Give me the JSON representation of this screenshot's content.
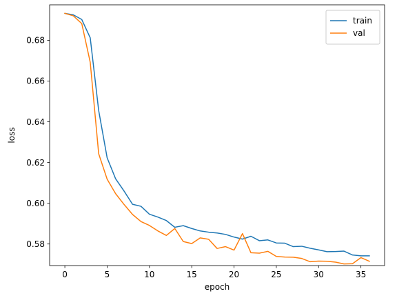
{
  "chart_data": {
    "type": "line",
    "title": "",
    "xlabel": "epoch",
    "ylabel": "loss",
    "xlim": [
      -1.8,
      37.8
    ],
    "ylim": [
      0.5694,
      0.6974
    ],
    "xticks": [
      0,
      5,
      10,
      15,
      20,
      25,
      30,
      35
    ],
    "yticks": [
      0.58,
      0.6,
      0.62,
      0.64,
      0.66,
      0.68
    ],
    "ytick_labels": [
      "0.58",
      "0.60",
      "0.62",
      "0.64",
      "0.66",
      "0.68"
    ],
    "grid": false,
    "legend_position": "upper right",
    "x": [
      0,
      1,
      2,
      3,
      4,
      5,
      6,
      7,
      8,
      9,
      10,
      11,
      12,
      13,
      14,
      15,
      16,
      17,
      18,
      19,
      20,
      21,
      22,
      23,
      24,
      25,
      26,
      27,
      28,
      29,
      30,
      31,
      32,
      33,
      34,
      35,
      36
    ],
    "series": [
      {
        "name": "train",
        "color": "#1f77b4",
        "values": [
          0.6932,
          0.6925,
          0.6902,
          0.6812,
          0.6455,
          0.6223,
          0.612,
          0.606,
          0.5995,
          0.5985,
          0.5946,
          0.5932,
          0.5915,
          0.5882,
          0.589,
          0.5876,
          0.5864,
          0.5858,
          0.5854,
          0.5847,
          0.5834,
          0.5824,
          0.5838,
          0.5816,
          0.582,
          0.5805,
          0.5804,
          0.5787,
          0.5789,
          0.5779,
          0.5771,
          0.5762,
          0.5763,
          0.5765,
          0.5746,
          0.5742,
          0.5742
        ]
      },
      {
        "name": "val",
        "color": "#ff7f0e",
        "values": [
          0.6932,
          0.692,
          0.6882,
          0.6692,
          0.6243,
          0.6118,
          0.6047,
          0.5994,
          0.5945,
          0.591,
          0.5891,
          0.5864,
          0.5842,
          0.5876,
          0.5812,
          0.5802,
          0.583,
          0.5823,
          0.5778,
          0.5787,
          0.577,
          0.5851,
          0.5757,
          0.5755,
          0.5764,
          0.5739,
          0.5736,
          0.5735,
          0.5729,
          0.5713,
          0.5716,
          0.5715,
          0.5711,
          0.5702,
          0.5703,
          0.5733,
          0.5715
        ]
      }
    ]
  }
}
